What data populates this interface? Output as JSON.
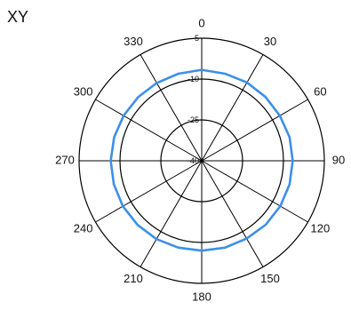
{
  "chart_data": {
    "type": "line",
    "subtype": "polar",
    "title": "XY",
    "radial_ticks": [
      "5",
      "-10",
      "-25",
      "-40"
    ],
    "radial_values": [
      5,
      -10,
      -25,
      -40
    ],
    "rlim": [
      -40,
      5
    ],
    "angle_ticks": [
      "0",
      "30",
      "60",
      "90",
      "120",
      "150",
      "180",
      "210",
      "240",
      "270",
      "300",
      "330"
    ],
    "angle_direction": "clockwise",
    "zero_at": "top",
    "grid": true,
    "series": [
      {
        "color": "#3d8fe8",
        "theta": [
          0,
          15,
          30,
          45,
          60,
          75,
          90,
          105,
          120,
          135,
          150,
          165,
          180,
          195,
          210,
          225,
          240,
          255,
          270,
          285,
          300,
          315,
          330,
          345,
          360
        ],
        "r": [
          -6.6,
          -6.9,
          -6.8,
          -6.9,
          -6.9,
          -6.6,
          -6.6,
          -6.6,
          -6.7,
          -6.8,
          -7.0,
          -7.0,
          -7.0,
          -7.0,
          -6.8,
          -6.7,
          -6.6,
          -6.6,
          -6.6,
          -6.7,
          -6.9,
          -7.0,
          -7.0,
          -6.9,
          -6.6
        ]
      }
    ]
  }
}
